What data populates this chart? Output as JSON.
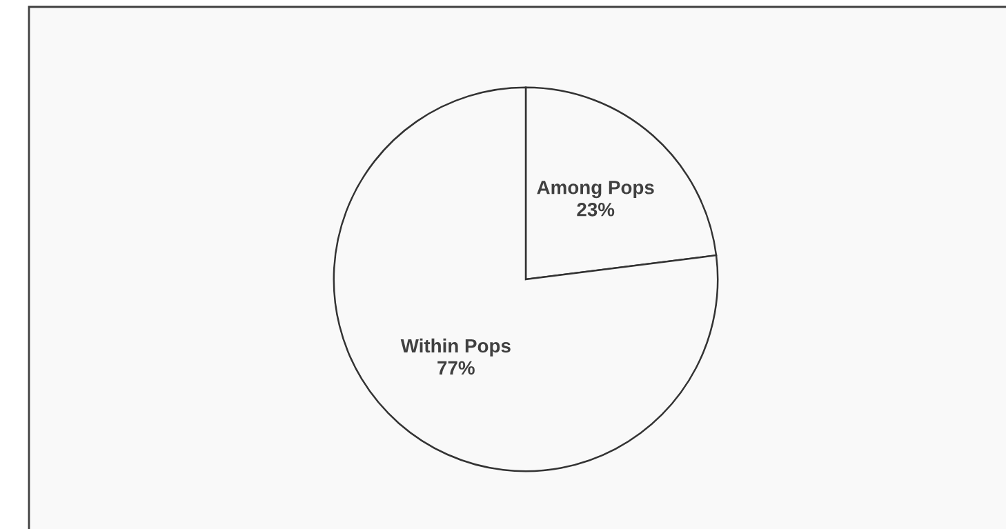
{
  "chart_data": {
    "type": "pie",
    "categories": [
      "Among Pops",
      "Within Pops"
    ],
    "values": [
      23,
      77
    ],
    "colors": [
      "#f9f9f9",
      "#f9f9f9"
    ],
    "value_labels": [
      "23%",
      "77%"
    ]
  }
}
